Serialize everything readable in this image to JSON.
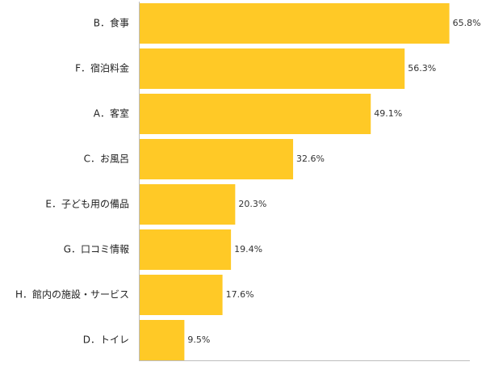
{
  "chart_data": {
    "type": "bar",
    "orientation": "horizontal",
    "categories": [
      "B．食事",
      "F．宿泊料金",
      "A．客室",
      "C．お風呂",
      "E．子ども用の備品",
      "G．口コミ情報",
      "H．館内の施設・サービス",
      "D．トイレ"
    ],
    "values": [
      65.8,
      56.3,
      49.1,
      32.6,
      20.3,
      19.4,
      17.6,
      9.5
    ],
    "value_labels": [
      "65.8%",
      "56.3%",
      "49.1%",
      "32.6%",
      "20.3%",
      "19.4%",
      "17.6%",
      "9.5%"
    ],
    "bar_color": "#ffc926",
    "axis_color": "#bdbdbd",
    "xlim": [
      0,
      70
    ],
    "grid": false,
    "legend": "none"
  }
}
